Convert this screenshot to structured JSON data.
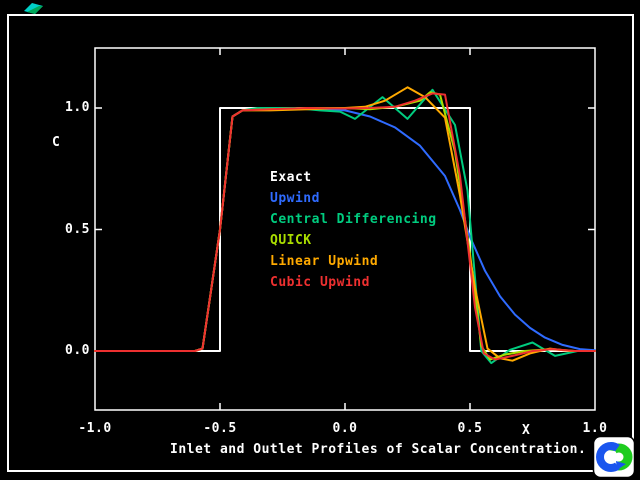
{
  "caption": "Inlet and Outlet Profiles of Scalar Concentration.",
  "colors": {
    "background": "#000000",
    "frame": "#ffffff",
    "exact": "#ffffff",
    "upwind": "#2f6bff",
    "central_differencing": "#00cc7f",
    "quick": "#aadd00",
    "linear_upwind": "#ffaa00",
    "cubic_upwind": "#ee3030",
    "logo_blue": "#1a55ee",
    "logo_green": "#1ecc1e",
    "brush_mark": "#00d0c8"
  },
  "chart_data": {
    "type": "line",
    "title": "Inlet and Outlet Profiles of Scalar Concentration.",
    "xlabel": "X",
    "ylabel": "C",
    "xlim": [
      -1.0,
      1.0
    ],
    "ylim": [
      -0.17,
      1.25
    ],
    "grid": false,
    "legend_position": "center",
    "xticks": [
      -1.0,
      -0.5,
      0.0,
      0.5,
      1.0
    ],
    "xtick_labels": [
      "-1.0",
      "-0.5",
      "0.0",
      "0.5",
      "1.0"
    ],
    "yticks": [
      0.0,
      0.5,
      1.0
    ],
    "ytick_labels": [
      "0.0",
      "0.5",
      "1.0"
    ],
    "legend": [
      {
        "label": "Exact",
        "color": "#ffffff"
      },
      {
        "label": "Upwind",
        "color": "#2f6bff"
      },
      {
        "label": "Central Differencing",
        "color": "#00cc7f"
      },
      {
        "label": "QUICK",
        "color": "#aadd00"
      },
      {
        "label": "Linear Upwind",
        "color": "#ffaa00"
      },
      {
        "label": "Cubic Upwind",
        "color": "#ee3030"
      }
    ],
    "series": [
      {
        "name": "Exact",
        "color": "#ffffff",
        "points": [
          [
            -1,
            0
          ],
          [
            -0.5,
            0
          ],
          [
            -0.5,
            1
          ],
          [
            0.5,
            1
          ],
          [
            0.5,
            0
          ],
          [
            1,
            0
          ]
        ]
      },
      {
        "name": "Upwind",
        "color": "#2f6bff",
        "points": [
          [
            -1,
            0
          ],
          [
            -0.6,
            0
          ],
          [
            -0.57,
            0.01
          ],
          [
            -0.5,
            0.5
          ],
          [
            -0.45,
            0.965
          ],
          [
            -0.41,
            0.99
          ],
          [
            -0.3,
            0.998
          ],
          [
            -0.1,
            0.995
          ],
          [
            0,
            0.99
          ],
          [
            0.1,
            0.965
          ],
          [
            0.2,
            0.92
          ],
          [
            0.3,
            0.845
          ],
          [
            0.4,
            0.72
          ],
          [
            0.46,
            0.58
          ],
          [
            0.5,
            0.47
          ],
          [
            0.56,
            0.33
          ],
          [
            0.62,
            0.225
          ],
          [
            0.68,
            0.15
          ],
          [
            0.74,
            0.095
          ],
          [
            0.8,
            0.055
          ],
          [
            0.87,
            0.025
          ],
          [
            0.94,
            0.008
          ],
          [
            1,
            0.003
          ]
        ]
      },
      {
        "name": "Central Differencing",
        "color": "#00cc7f",
        "points": [
          [
            -1,
            0
          ],
          [
            -0.6,
            0
          ],
          [
            -0.57,
            0.01
          ],
          [
            -0.5,
            0.5
          ],
          [
            -0.45,
            0.965
          ],
          [
            -0.41,
            0.99
          ],
          [
            -0.35,
            1.0
          ],
          [
            -0.2,
            1.0
          ],
          [
            -0.1,
            0.99
          ],
          [
            -0.02,
            0.985
          ],
          [
            0.04,
            0.955
          ],
          [
            0.15,
            1.045
          ],
          [
            0.25,
            0.955
          ],
          [
            0.35,
            1.075
          ],
          [
            0.44,
            0.93
          ],
          [
            0.49,
            0.66
          ],
          [
            0.545,
            0
          ],
          [
            0.585,
            -0.05
          ],
          [
            0.66,
            0.005
          ],
          [
            0.75,
            0.035
          ],
          [
            0.84,
            -0.02
          ],
          [
            0.93,
            0
          ],
          [
            1,
            0
          ]
        ]
      },
      {
        "name": "QUICK",
        "color": "#aadd00",
        "points": [
          [
            -1,
            0
          ],
          [
            -0.6,
            0
          ],
          [
            -0.57,
            0.01
          ],
          [
            -0.5,
            0.5
          ],
          [
            -0.45,
            0.965
          ],
          [
            -0.41,
            0.99
          ],
          [
            -0.3,
            0.995
          ],
          [
            -0.15,
            1.0
          ],
          [
            0,
            1.0
          ],
          [
            0.1,
            0.995
          ],
          [
            0.2,
            1.005
          ],
          [
            0.3,
            1.03
          ],
          [
            0.34,
            1.065
          ],
          [
            0.38,
            1.055
          ],
          [
            0.44,
            0.82
          ],
          [
            0.5,
            0.4
          ],
          [
            0.545,
            0.02
          ],
          [
            0.58,
            -0.035
          ],
          [
            0.64,
            -0.015
          ],
          [
            0.72,
            0
          ],
          [
            0.82,
            0.008
          ],
          [
            0.92,
            0
          ],
          [
            1,
            0
          ]
        ]
      },
      {
        "name": "Linear Upwind",
        "color": "#ffaa00",
        "points": [
          [
            -1,
            0
          ],
          [
            -0.6,
            0
          ],
          [
            -0.57,
            0.01
          ],
          [
            -0.5,
            0.5
          ],
          [
            -0.45,
            0.965
          ],
          [
            -0.41,
            0.99
          ],
          [
            -0.3,
            0.99
          ],
          [
            -0.15,
            0.995
          ],
          [
            0,
            1.0
          ],
          [
            0.08,
            1.005
          ],
          [
            0.16,
            1.03
          ],
          [
            0.25,
            1.085
          ],
          [
            0.32,
            1.045
          ],
          [
            0.4,
            0.96
          ],
          [
            0.46,
            0.64
          ],
          [
            0.52,
            0.26
          ],
          [
            0.57,
            0.01
          ],
          [
            0.62,
            -0.03
          ],
          [
            0.67,
            -0.04
          ],
          [
            0.74,
            -0.01
          ],
          [
            0.82,
            0.01
          ],
          [
            0.9,
            0
          ],
          [
            1,
            0
          ]
        ]
      },
      {
        "name": "Cubic Upwind",
        "color": "#ee3030",
        "points": [
          [
            -1,
            0
          ],
          [
            -0.6,
            0
          ],
          [
            -0.57,
            0.01
          ],
          [
            -0.5,
            0.5
          ],
          [
            -0.45,
            0.965
          ],
          [
            -0.41,
            0.99
          ],
          [
            -0.3,
            0.995
          ],
          [
            -0.15,
            1.0
          ],
          [
            0,
            0.998
          ],
          [
            0.1,
            1.0
          ],
          [
            0.2,
            1.005
          ],
          [
            0.28,
            1.03
          ],
          [
            0.35,
            1.06
          ],
          [
            0.4,
            1.055
          ],
          [
            0.46,
            0.72
          ],
          [
            0.52,
            0.18
          ],
          [
            0.555,
            -0.01
          ],
          [
            0.6,
            -0.035
          ],
          [
            0.67,
            -0.02
          ],
          [
            0.75,
            0
          ],
          [
            0.83,
            0.008
          ],
          [
            0.92,
            0
          ],
          [
            1,
            0
          ]
        ]
      }
    ]
  }
}
